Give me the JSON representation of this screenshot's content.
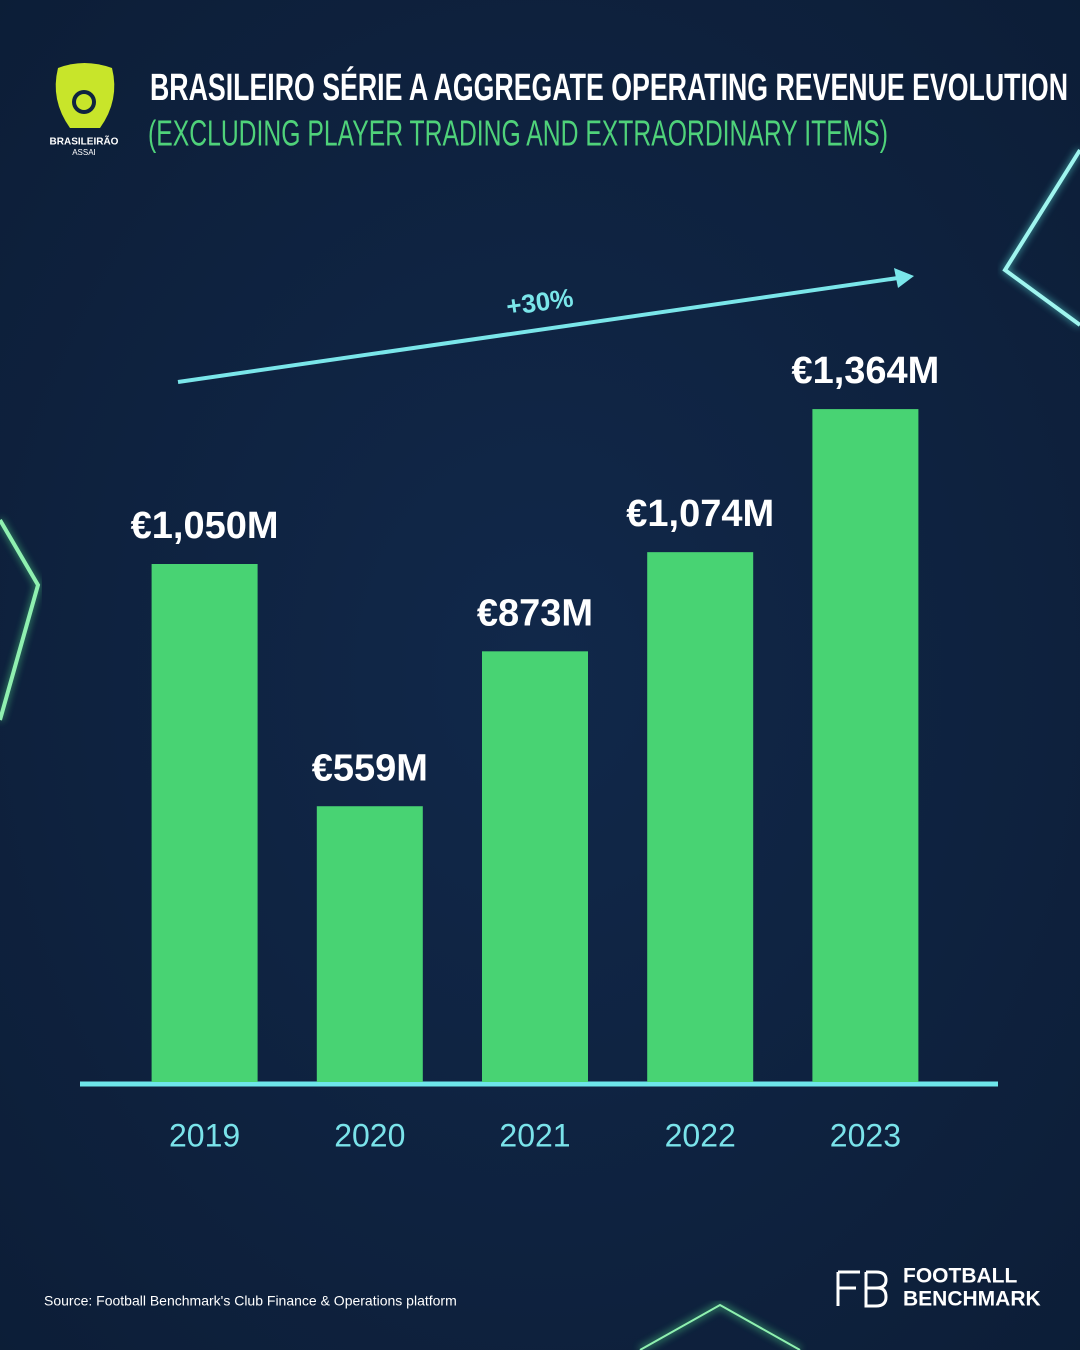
{
  "logo": {
    "name": "BRASILEIRÃO",
    "sponsor": "ASSAI"
  },
  "chart_data": {
    "type": "bar",
    "title": "BRASILEIRO SÉRIE A AGGREGATE OPERATING REVENUE EVOLUTION",
    "subtitle": "(EXCLUDING PLAYER TRADING AND EXTRAORDINARY ITEMS)",
    "annotation": "+30%",
    "categories": [
      "2019",
      "2020",
      "2021",
      "2022",
      "2023"
    ],
    "values": [
      1050,
      559,
      873,
      1074,
      1364
    ],
    "value_labels": [
      "€1,050M",
      "€559M",
      "€873M",
      "€1,074M",
      "€1,364M"
    ],
    "color": "#48d373",
    "ylim": [
      0,
      1500
    ]
  },
  "source": "Source: Football Benchmark's Club Finance & Operations platform",
  "brand": {
    "line1": "FOOTBALL",
    "line2": "BENCHMARK"
  }
}
